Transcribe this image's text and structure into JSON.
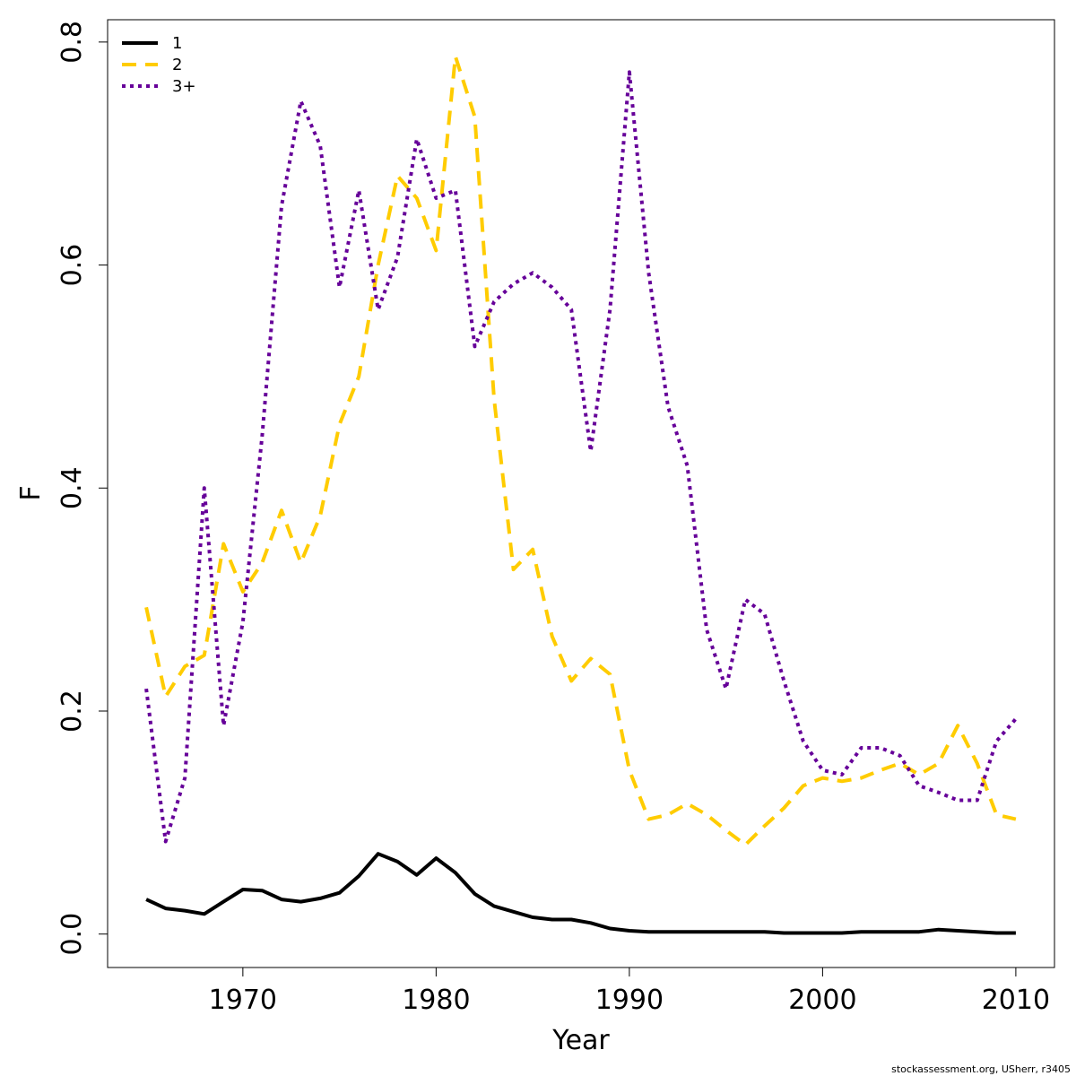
{
  "chart_data": {
    "type": "line",
    "xlabel": "Year",
    "ylabel": "F",
    "xlim": [
      1963,
      2012
    ],
    "ylim": [
      -0.03,
      0.82
    ],
    "x_ticks": [
      1970,
      1980,
      1990,
      2000,
      2010
    ],
    "y_ticks": [
      0.0,
      0.2,
      0.4,
      0.6,
      0.8
    ],
    "x_tick_labels": [
      "1970",
      "1980",
      "1990",
      "2000",
      "2010"
    ],
    "y_tick_labels": [
      "0.0",
      "0.2",
      "0.4",
      "0.6",
      "0.8"
    ],
    "legend_position": "top-left",
    "x": [
      1965,
      1966,
      1967,
      1968,
      1969,
      1970,
      1971,
      1972,
      1973,
      1974,
      1975,
      1976,
      1977,
      1978,
      1979,
      1980,
      1981,
      1982,
      1983,
      1984,
      1985,
      1986,
      1987,
      1988,
      1989,
      1990,
      1991,
      1992,
      1993,
      1994,
      1995,
      1996,
      1997,
      1998,
      1999,
      2000,
      2001,
      2002,
      2003,
      2004,
      2005,
      2006,
      2007,
      2008,
      2009,
      2010
    ],
    "series": [
      {
        "name": "1",
        "color": "#000000",
        "dash": "solid",
        "values": [
          0.031,
          0.023,
          0.021,
          0.018,
          0.029,
          0.04,
          0.039,
          0.031,
          0.029,
          0.032,
          0.037,
          0.052,
          0.072,
          0.065,
          0.053,
          0.068,
          0.055,
          0.036,
          0.025,
          0.02,
          0.015,
          0.013,
          0.013,
          0.01,
          0.005,
          0.003,
          0.002,
          0.002,
          0.002,
          0.002,
          0.002,
          0.002,
          0.002,
          0.001,
          0.001,
          0.001,
          0.001,
          0.002,
          0.002,
          0.002,
          0.002,
          0.004,
          0.003,
          0.002,
          0.001,
          0.001
        ]
      },
      {
        "name": "2",
        "color": "#FFCC00",
        "dash": "dashed",
        "values": [
          0.293,
          0.213,
          0.24,
          0.25,
          0.35,
          0.307,
          0.333,
          0.38,
          0.333,
          0.375,
          0.457,
          0.5,
          0.6,
          0.68,
          0.66,
          0.613,
          0.787,
          0.733,
          0.48,
          0.327,
          0.345,
          0.267,
          0.227,
          0.247,
          0.233,
          0.147,
          0.103,
          0.107,
          0.117,
          0.107,
          0.093,
          0.08,
          0.097,
          0.113,
          0.133,
          0.14,
          0.137,
          0.14,
          0.147,
          0.153,
          0.143,
          0.153,
          0.187,
          0.153,
          0.107,
          0.103
        ]
      },
      {
        "name": "3+",
        "color": "#660099",
        "dash": "dotted",
        "values": [
          0.22,
          0.083,
          0.14,
          0.4,
          0.187,
          0.28,
          0.447,
          0.653,
          0.747,
          0.707,
          0.58,
          0.667,
          0.56,
          0.607,
          0.713,
          0.66,
          0.667,
          0.527,
          0.567,
          0.583,
          0.593,
          0.58,
          0.56,
          0.433,
          0.56,
          0.773,
          0.593,
          0.473,
          0.42,
          0.273,
          0.22,
          0.3,
          0.287,
          0.227,
          0.173,
          0.147,
          0.143,
          0.167,
          0.167,
          0.16,
          0.133,
          0.127,
          0.12,
          0.12,
          0.173,
          0.193
        ]
      }
    ]
  },
  "footer": {
    "credit": "stockassessment.org, USherr, r3405"
  }
}
